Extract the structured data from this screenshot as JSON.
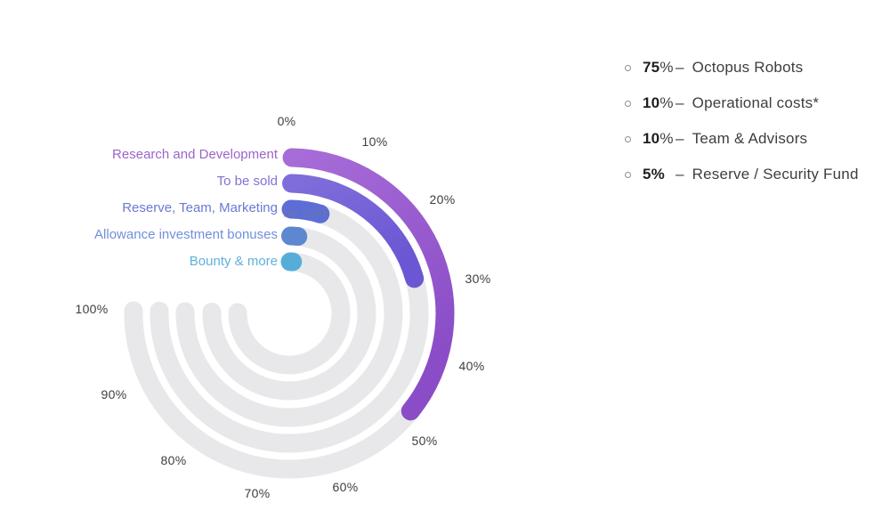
{
  "chart_data": {
    "type": "bar",
    "variant": "radial-progress",
    "title": "",
    "categories": [
      "Research and Development",
      "To be sold",
      "Reserve, Team, Marketing",
      "Allowance investment bonuses",
      "Bounty & more"
    ],
    "values": [
      47,
      27,
      6,
      2,
      1
    ],
    "unit": "%",
    "ticks": [
      "0%",
      "10%",
      "20%",
      "30%",
      "40%",
      "50%",
      "60%",
      "70%",
      "80%",
      "90%",
      "100%"
    ],
    "scale": {
      "min": 0,
      "max": 100,
      "sweep_degrees": 272,
      "direction": "clockwise",
      "start": "top"
    },
    "grid": false,
    "track_color": "#e8e8ea",
    "arc_colors": [
      [
        "#a86cd8",
        "#8a4dc7"
      ],
      [
        "#7f6ddb",
        "#6b57d3"
      ],
      [
        "#5c6dd6",
        "#5c6dd6"
      ],
      [
        "#5d87d0",
        "#5d87d0"
      ],
      [
        "#56aed8",
        "#56aed8"
      ]
    ],
    "label_colors": [
      "#9c64c9",
      "#8471d6",
      "#6a7ad2",
      "#7090d8",
      "#60b0dc"
    ],
    "ghost_text": "be sold"
  },
  "legend": {
    "items": [
      {
        "value": "75",
        "unit": "%",
        "sep": "–",
        "label": "Octopus Robots"
      },
      {
        "value": "10",
        "unit": "%",
        "sep": "–",
        "label": "Operational costs*"
      },
      {
        "value": "10",
        "unit": "%",
        "sep": "–",
        "label": "Team & Advisors"
      },
      {
        "value": "5",
        "unit": "%",
        "sep": "–",
        "label": "Reserve / Security Fund"
      }
    ]
  }
}
